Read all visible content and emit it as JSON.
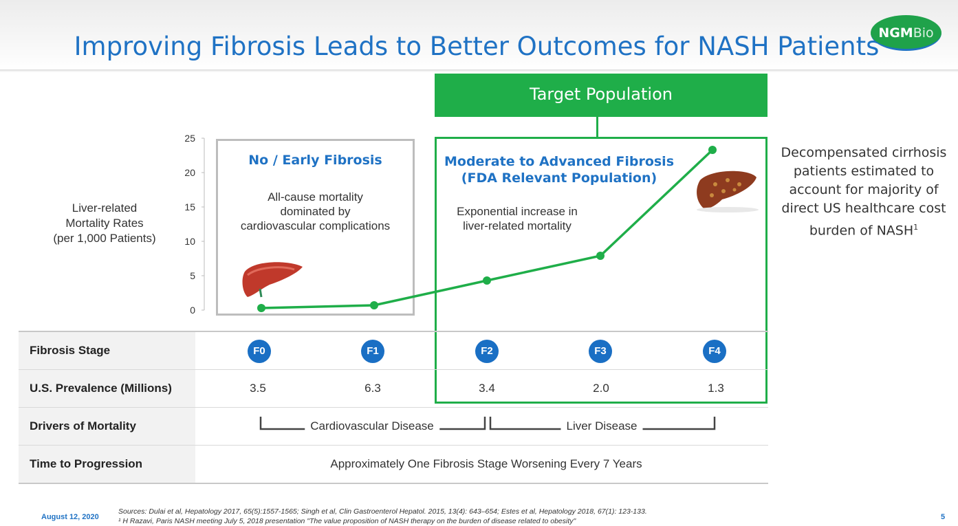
{
  "header": {
    "title": "Improving Fibrosis Leads to Better Outcomes for NASH Patients",
    "logo_bold": "NGM",
    "logo_light": "Bio"
  },
  "target_banner": "Target Population",
  "boxes": {
    "early": {
      "heading": "No / Early Fibrosis",
      "text_lines": [
        "All-cause mortality",
        "dominated by",
        "cardiovascular complications"
      ]
    },
    "advanced": {
      "heading_lines": [
        "Moderate to Advanced Fibrosis",
        "(FDA Relevant Population)"
      ],
      "text_lines": [
        "Exponential increase in",
        "liver-related mortality"
      ]
    }
  },
  "side_note": {
    "lines": [
      "Decompensated cirrhosis",
      "patients estimated to",
      "account for majority of",
      "direct US healthcare cost"
    ],
    "last_line": "burden of NASH",
    "footnote": "1"
  },
  "chart_data": {
    "type": "line",
    "ylabel": "Liver-related Mortality Rates (per 1,000 Patients)",
    "ylabel_lines": [
      "Liver-related",
      "Mortality Rates",
      "(per 1,000 Patients)"
    ],
    "categories": [
      "F0",
      "F1",
      "F2",
      "F3",
      "F4"
    ],
    "values": [
      0.3,
      0.7,
      4.3,
      7.9,
      23.3
    ],
    "ylim": [
      0,
      25
    ],
    "yticks": [
      0,
      5,
      10,
      15,
      20,
      25
    ],
    "color": "#1fae49"
  },
  "table": {
    "rows": [
      {
        "label": "Fibrosis Stage",
        "values": [
          "F0",
          "F1",
          "F2",
          "F3",
          "F4"
        ]
      },
      {
        "label": "U.S. Prevalence (Millions)",
        "values": [
          "3.5",
          "6.3",
          "3.4",
          "2.0",
          "1.3"
        ]
      },
      {
        "label": "Drivers of Mortality",
        "brackets": [
          "Cardiovascular Disease",
          "Liver Disease"
        ]
      },
      {
        "label": "Time to Progression",
        "text": "Approximately One Fibrosis Stage Worsening Every 7 Years"
      }
    ]
  },
  "footer": {
    "date": "August 12, 2020",
    "sources_line1": "Sources:  Dulai et al, Hepatology 2017, 65(5):1557-1565; Singh et al, Clin Gastroenterol Hepatol. 2015, 13(4): 643–654;  Estes et al, Hepatology 2018, 67(1): 123-133.",
    "sources_line2": "¹ H Razavi, Paris NASH meeting July 5, 2018 presentation \"The value proposition of NASH therapy on the burden of disease related to obesity\"",
    "page": "5"
  },
  "colors": {
    "brand_blue": "#1f72c4",
    "brand_green": "#1fae49",
    "badge_blue": "#1a6fc4"
  }
}
